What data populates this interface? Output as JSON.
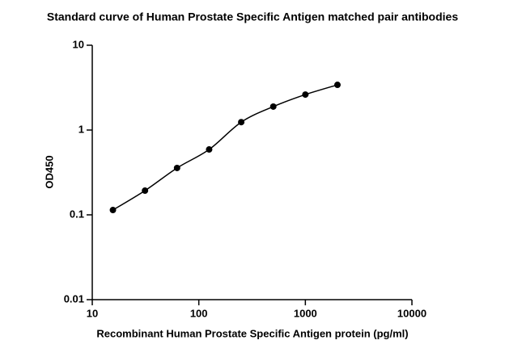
{
  "chart_data": {
    "type": "scatter",
    "title": "Standard curve of Human Prostate Specific Antigen matched pair antibodies",
    "x_label": "Recombinant Human Prostate Specific Antigen protein (pg/ml)",
    "y_label": "OD450",
    "x": [
      15.625,
      31.25,
      62.5,
      125,
      250,
      500,
      1000,
      2000
    ],
    "series": [
      {
        "color": "#000000",
        "values": [
          0.114,
          0.193,
          0.357,
          0.59,
          1.24,
          1.89,
          2.62,
          3.41
        ]
      }
    ],
    "xlim": [
      10,
      10000
    ],
    "xticks": [
      10,
      100,
      1000,
      10000
    ],
    "xscale": "log",
    "ylim": [
      0.01,
      10
    ],
    "yticks": [
      0.01,
      0.1,
      1,
      10
    ],
    "yscale": "log",
    "line": true
  }
}
